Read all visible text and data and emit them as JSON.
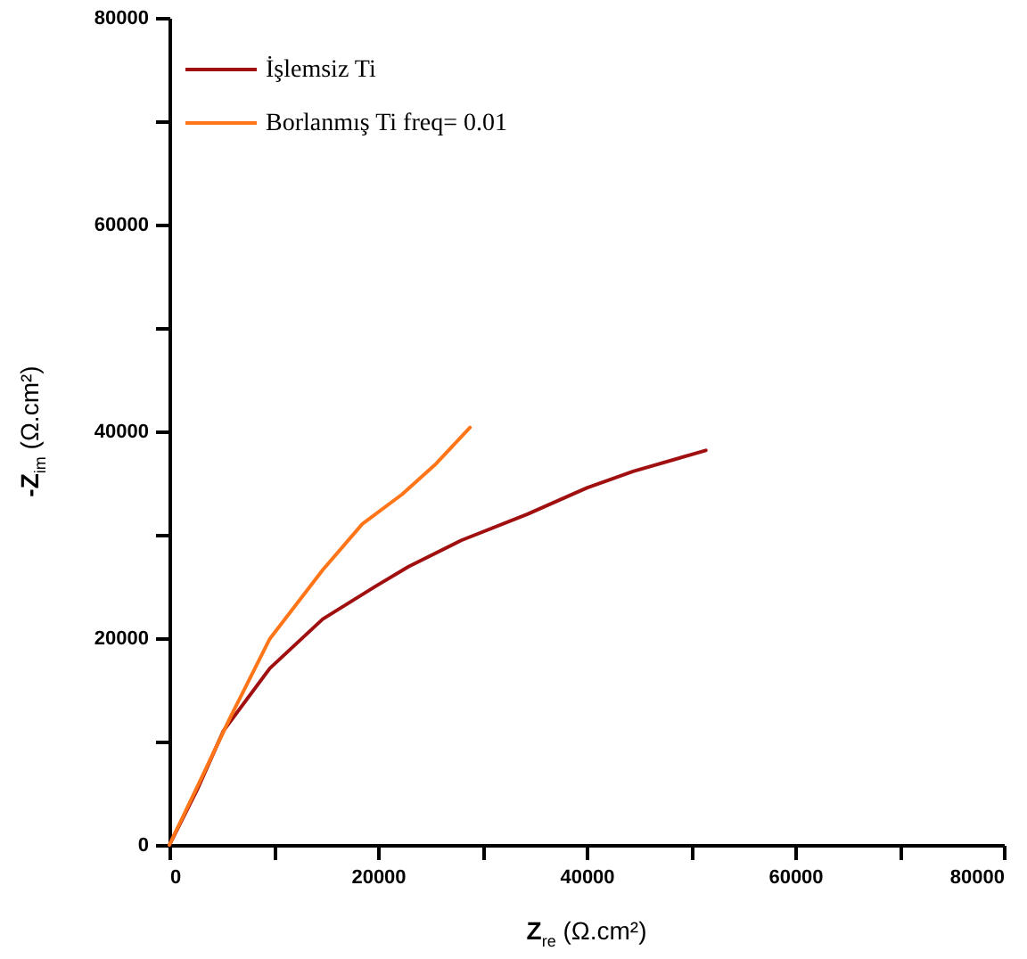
{
  "chart_data": {
    "type": "line",
    "xlabel": "Z$_{re}$ (Ω.cm²)",
    "ylabel": "-Z$_{im}$ (Ω.cm²)",
    "series": [
      {
        "name": "İşlemsiz Ti",
        "color": "#a01010",
        "x": [
          0,
          2660,
          5190,
          9630,
          14700,
          19760,
          22930,
          27990,
          34330,
          40030,
          44460,
          51430
        ],
        "values": [
          0,
          5330,
          11050,
          17080,
          21840,
          25010,
          26920,
          29460,
          32000,
          34540,
          36130,
          38160
        ]
      },
      {
        "name": "Borlanmış Ti freq= 0.01",
        "color": "#ff7518",
        "x": [
          0,
          2660,
          5830,
          9630,
          14700,
          18500,
          22300,
          25460,
          28820
        ],
        "values": [
          0,
          5600,
          12320,
          19940,
          26600,
          31050,
          33900,
          36760,
          40380
        ]
      }
    ],
    "xlim": [
      0,
      80000
    ],
    "ylim": [
      0,
      80000
    ],
    "xticks": [
      0,
      {
        "value": 10000,
        "label": null
      },
      20000,
      {
        "value": 30000,
        "label": null
      },
      40000,
      {
        "value": 50000,
        "label": null
      },
      60000,
      {
        "value": 70000,
        "label": null
      },
      80000
    ],
    "yticks": [
      0,
      {
        "value": 10000,
        "label": null
      },
      20000,
      {
        "value": 30000,
        "label": null
      },
      40000,
      {
        "value": 50000,
        "label": null
      },
      60000,
      {
        "value": 70000,
        "label": null
      },
      80000
    ],
    "legend": "top left",
    "grid": false,
    "marker": "none",
    "line_style": "solid"
  }
}
